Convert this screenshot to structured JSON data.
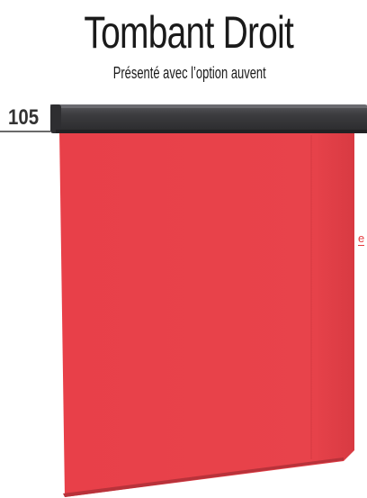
{
  "header": {
    "title": "Tombant Droit",
    "subtitle": "Présenté avec l’option auvent"
  },
  "model": {
    "number": "105"
  },
  "edge_text": "e",
  "colors": {
    "fabric": "#e8414a",
    "fabric_shadow": "#c9353c",
    "cassette": "#3a3a3c",
    "cassette_highlight": "#5a5a5e",
    "text": "#1a1a1a",
    "accent": "#e53a3e"
  }
}
